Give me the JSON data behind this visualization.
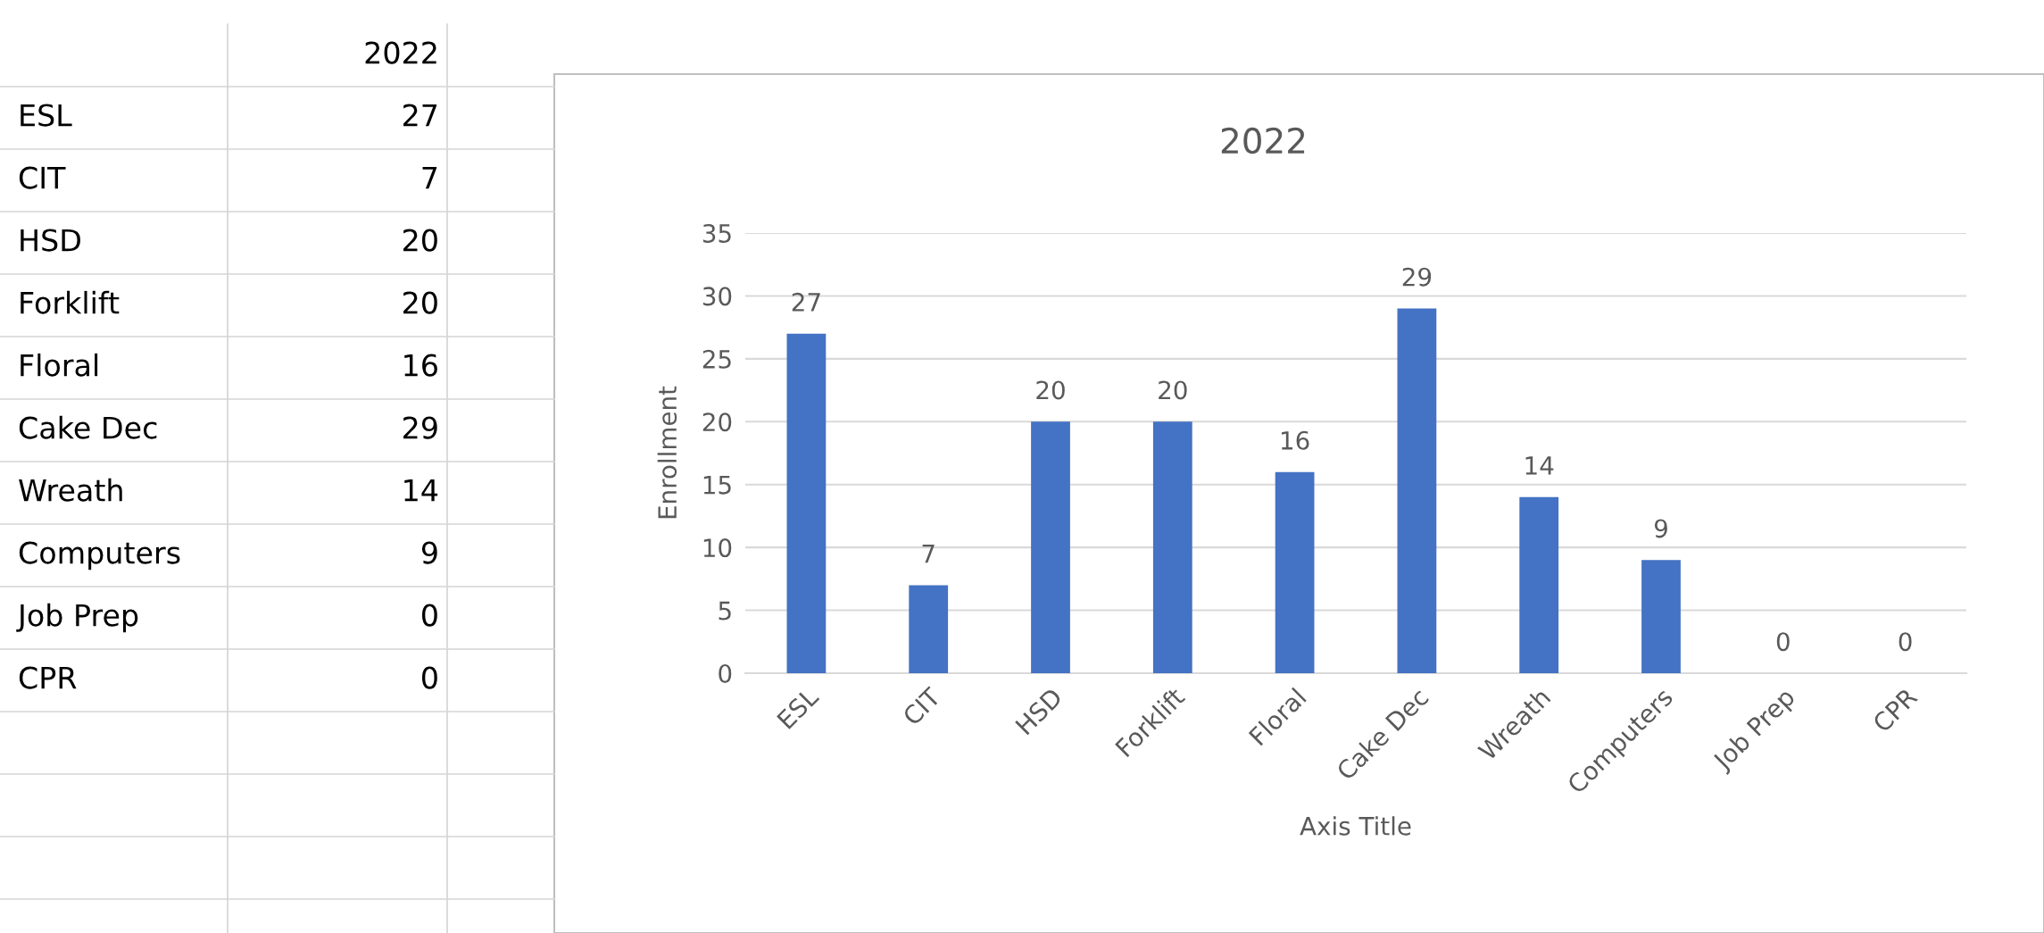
{
  "chart_data": {
    "type": "bar",
    "title": "2022",
    "xlabel": "Axis Title",
    "ylabel": "Enrollment",
    "categories": [
      "ESL",
      "CIT",
      "HSD",
      "Forklift",
      "Floral",
      "Cake Dec",
      "Wreath",
      "Computers",
      "Job Prep",
      "CPR"
    ],
    "values": [
      27,
      7,
      20,
      20,
      16,
      29,
      14,
      9,
      0,
      0
    ],
    "color": "#4472c4",
    "ylim": [
      0,
      35
    ],
    "yticks": [
      0,
      5,
      10,
      15,
      20,
      25,
      30,
      35
    ],
    "grid": "y",
    "data_labels": true,
    "annotations": [
      "27",
      "7",
      "20",
      "20",
      "16",
      "29",
      "14",
      "9",
      "0",
      "0"
    ]
  }
}
